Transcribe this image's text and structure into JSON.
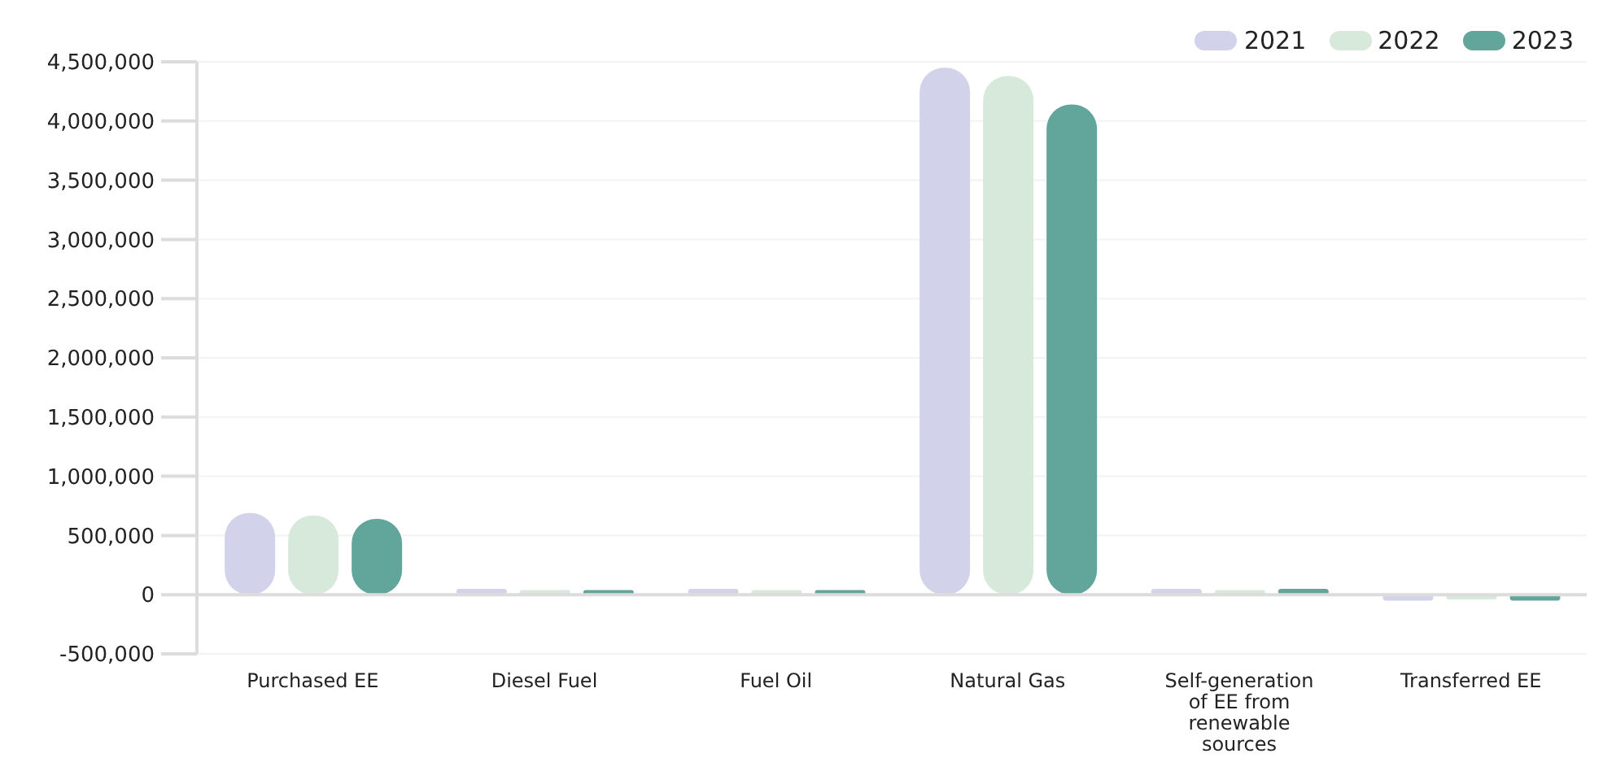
{
  "chart_data": {
    "type": "bar",
    "categories": [
      "Purchased EE",
      "Diesel Fuel",
      "Fuel Oil",
      "Natural Gas",
      "Self-generation of EE from renewable sources",
      "Transferred EE"
    ],
    "series": [
      {
        "name": "2021",
        "color": "#d2d3ea",
        "values": [
          690000,
          50000,
          50000,
          4450000,
          50000,
          -50000
        ]
      },
      {
        "name": "2022",
        "color": "#d6e9da",
        "values": [
          670000,
          40000,
          40000,
          4380000,
          40000,
          -40000
        ]
      },
      {
        "name": "2023",
        "color": "#62a59a",
        "values": [
          640000,
          40000,
          40000,
          4140000,
          50000,
          -50000
        ]
      }
    ],
    "ylim": [
      -500000,
      4500000
    ],
    "yticks": [
      {
        "value": -500000,
        "label": "-500,000"
      },
      0,
      {
        "value": 500000,
        "label": "500,000"
      },
      {
        "value": 1000000,
        "label": "1,000,000"
      },
      {
        "value": 1500000,
        "label": "1,500,000"
      },
      {
        "value": 2000000,
        "label": "2,000,000"
      },
      {
        "value": 2500000,
        "label": "2,500,000"
      },
      {
        "value": 3000000,
        "label": "3,000,000"
      },
      {
        "value": 3500000,
        "label": "3,500,000"
      },
      {
        "value": 4000000,
        "label": "4,000,000"
      },
      {
        "value": 4500000,
        "label": "4,500,000"
      }
    ],
    "grid": "y",
    "legend": "top right"
  }
}
